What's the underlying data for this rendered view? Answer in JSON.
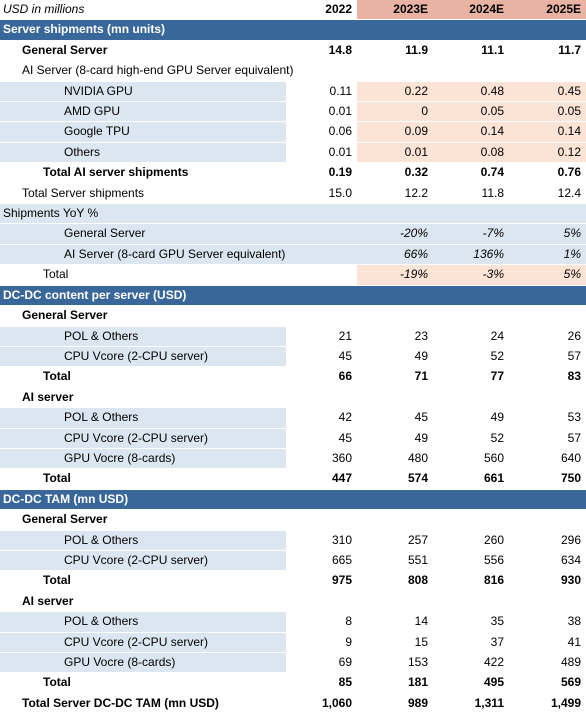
{
  "header": {
    "label": "USD in millions",
    "years": [
      "2022",
      "2023E",
      "2024E",
      "2025E"
    ]
  },
  "sections": {
    "shipments": {
      "title": "Server shipments (mn units)",
      "general": {
        "label": "General Server",
        "values": [
          "14.8",
          "11.9",
          "11.1",
          "11.7"
        ]
      },
      "ai_heading": "AI Server (8-card high-end GPU Server equivalent)",
      "ai_rows": [
        {
          "label": "NVIDIA GPU",
          "values": [
            "0.11",
            "0.22",
            "0.48",
            "0.45"
          ]
        },
        {
          "label": "AMD GPU",
          "values": [
            "0.01",
            "0",
            "0.05",
            "0.05"
          ]
        },
        {
          "label": "Google TPU",
          "values": [
            "0.06",
            "0.09",
            "0.14",
            "0.14"
          ]
        },
        {
          "label": "Others",
          "values": [
            "0.01",
            "0.01",
            "0.08",
            "0.12"
          ]
        }
      ],
      "total_ai": {
        "label": "Total AI server shipments",
        "values": [
          "0.19",
          "0.32",
          "0.74",
          "0.76"
        ]
      },
      "total_server": {
        "label": "Total Server shipments",
        "values": [
          "15.0",
          "12.2",
          "11.8",
          "12.4"
        ]
      }
    },
    "yoy": {
      "title": "Shipments YoY %",
      "rows": [
        {
          "label": "General Server",
          "values": [
            "",
            "-20%",
            "-7%",
            "5%"
          ]
        },
        {
          "label": "AI Server (8-card GPU Server equivalent)",
          "values": [
            "",
            "66%",
            "136%",
            "1%"
          ]
        }
      ],
      "total": {
        "label": "Total",
        "values": [
          "",
          "-19%",
          "-3%",
          "5%"
        ]
      }
    },
    "content": {
      "title": "DC-DC content per server (USD)",
      "general_heading": "General Server",
      "general_rows": [
        {
          "label": "POL & Others",
          "values": [
            "21",
            "23",
            "24",
            "26"
          ]
        },
        {
          "label": "CPU Vcore (2-CPU server)",
          "values": [
            "45",
            "49",
            "52",
            "57"
          ]
        }
      ],
      "general_total": {
        "label": "Total",
        "values": [
          "66",
          "71",
          "77",
          "83"
        ]
      },
      "ai_heading": "AI server",
      "ai_rows": [
        {
          "label": "POL & Others",
          "values": [
            "42",
            "45",
            "49",
            "53"
          ]
        },
        {
          "label": "CPU Vcore (2-CPU server)",
          "values": [
            "45",
            "49",
            "52",
            "57"
          ]
        },
        {
          "label": "GPU Vocre (8-cards)",
          "values": [
            "360",
            "480",
            "560",
            "640"
          ]
        }
      ],
      "ai_total": {
        "label": "Total",
        "values": [
          "447",
          "574",
          "661",
          "750"
        ]
      }
    },
    "tam": {
      "title": "DC-DC TAM (mn USD)",
      "general_heading": "General Server",
      "general_rows": [
        {
          "label": "POL & Others",
          "values": [
            "310",
            "257",
            "260",
            "296"
          ]
        },
        {
          "label": "CPU Vcore (2-CPU server)",
          "values": [
            "665",
            "551",
            "556",
            "634"
          ]
        }
      ],
      "general_total": {
        "label": "Total",
        "values": [
          "975",
          "808",
          "816",
          "930"
        ]
      },
      "ai_heading": "AI server",
      "ai_rows": [
        {
          "label": "POL & Others",
          "values": [
            "8",
            "14",
            "35",
            "38"
          ]
        },
        {
          "label": "CPU Vcore (2-CPU server)",
          "values": [
            "9",
            "15",
            "37",
            "41"
          ]
        },
        {
          "label": "GPU Vocre (8-cards)",
          "values": [
            "69",
            "153",
            "422",
            "489"
          ]
        }
      ],
      "ai_total": {
        "label": "Total",
        "values": [
          "85",
          "181",
          "495",
          "569"
        ]
      },
      "grand_total": {
        "label": "Total Server DC-DC TAM (mn USD)",
        "values": [
          "1,060",
          "989",
          "1,311",
          "1,499"
        ]
      }
    }
  }
}
